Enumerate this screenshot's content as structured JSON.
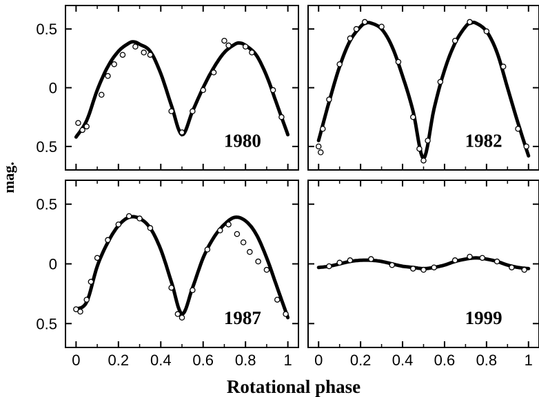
{
  "chart_data": [
    {
      "type": "line",
      "panel": "top-left",
      "label": "1980",
      "x": [
        0,
        0.05,
        0.1,
        0.15,
        0.2,
        0.25,
        0.275,
        0.3,
        0.35,
        0.4,
        0.45,
        0.5,
        0.55,
        0.6,
        0.65,
        0.7,
        0.75,
        0.775,
        0.8,
        0.85,
        0.9,
        0.95,
        1.0
      ],
      "series": [
        {
          "values": [
            -0.42,
            -0.28,
            -0.02,
            0.18,
            0.31,
            0.38,
            0.39,
            0.37,
            0.31,
            0.12,
            -0.15,
            -0.4,
            -0.2,
            0.0,
            0.17,
            0.3,
            0.37,
            0.38,
            0.36,
            0.28,
            0.1,
            -0.15,
            -0.4
          ]
        }
      ],
      "points": [
        [
          0.01,
          -0.3
        ],
        [
          0.03,
          -0.36
        ],
        [
          0.05,
          -0.33
        ],
        [
          0.12,
          -0.06
        ],
        [
          0.15,
          0.1
        ],
        [
          0.18,
          0.2
        ],
        [
          0.22,
          0.28
        ],
        [
          0.28,
          0.35
        ],
        [
          0.32,
          0.3
        ],
        [
          0.35,
          0.28
        ],
        [
          0.45,
          -0.2
        ],
        [
          0.5,
          -0.38
        ],
        [
          0.55,
          -0.2
        ],
        [
          0.6,
          -0.02
        ],
        [
          0.65,
          0.13
        ],
        [
          0.7,
          0.4
        ],
        [
          0.72,
          0.36
        ],
        [
          0.8,
          0.35
        ],
        [
          0.83,
          0.3
        ],
        [
          0.93,
          -0.02
        ],
        [
          0.97,
          -0.25
        ]
      ],
      "xlim": [
        -0.05,
        1.05
      ],
      "ylim": [
        0.7,
        -0.7
      ],
      "yticks": [
        "0.5",
        "0",
        "0.5"
      ],
      "xticks": [],
      "ytick_values": [
        -0.5,
        0,
        0.5
      ]
    },
    {
      "type": "line",
      "panel": "top-right",
      "label": "1982",
      "x": [
        0,
        0.05,
        0.1,
        0.15,
        0.2,
        0.225,
        0.25,
        0.3,
        0.35,
        0.4,
        0.45,
        0.5,
        0.55,
        0.6,
        0.65,
        0.7,
        0.725,
        0.75,
        0.8,
        0.85,
        0.9,
        0.95,
        1.0
      ],
      "series": [
        {
          "values": [
            -0.45,
            -0.12,
            0.18,
            0.4,
            0.52,
            0.55,
            0.55,
            0.5,
            0.35,
            0.1,
            -0.2,
            -0.6,
            -0.18,
            0.15,
            0.38,
            0.52,
            0.55,
            0.55,
            0.48,
            0.3,
            0.0,
            -0.3,
            -0.58
          ]
        }
      ],
      "points": [
        [
          0.0,
          -0.5
        ],
        [
          0.01,
          -0.55
        ],
        [
          0.02,
          -0.35
        ],
        [
          0.05,
          -0.1
        ],
        [
          0.1,
          0.2
        ],
        [
          0.15,
          0.42
        ],
        [
          0.18,
          0.5
        ],
        [
          0.22,
          0.56
        ],
        [
          0.3,
          0.52
        ],
        [
          0.38,
          0.22
        ],
        [
          0.45,
          -0.25
        ],
        [
          0.48,
          -0.52
        ],
        [
          0.5,
          -0.62
        ],
        [
          0.52,
          -0.45
        ],
        [
          0.58,
          0.05
        ],
        [
          0.65,
          0.4
        ],
        [
          0.72,
          0.56
        ],
        [
          0.8,
          0.48
        ],
        [
          0.88,
          0.18
        ],
        [
          0.95,
          -0.35
        ],
        [
          0.99,
          -0.5
        ]
      ],
      "xlim": [
        -0.05,
        1.05
      ],
      "ylim": [
        0.7,
        -0.7
      ],
      "yticks": [],
      "xticks": []
    },
    {
      "type": "line",
      "panel": "bottom-left",
      "label": "1987",
      "x": [
        0,
        0.05,
        0.1,
        0.15,
        0.2,
        0.25,
        0.3,
        0.35,
        0.4,
        0.45,
        0.5,
        0.55,
        0.6,
        0.65,
        0.7,
        0.75,
        0.8,
        0.85,
        0.9,
        0.95,
        1.0
      ],
      "series": [
        {
          "values": [
            -0.38,
            -0.32,
            -0.02,
            0.18,
            0.32,
            0.39,
            0.38,
            0.3,
            0.12,
            -0.15,
            -0.42,
            -0.2,
            0.05,
            0.22,
            0.33,
            0.39,
            0.36,
            0.25,
            0.05,
            -0.2,
            -0.45
          ]
        }
      ],
      "points": [
        [
          0.0,
          -0.38
        ],
        [
          0.02,
          -0.4
        ],
        [
          0.05,
          -0.3
        ],
        [
          0.07,
          -0.15
        ],
        [
          0.1,
          0.05
        ],
        [
          0.15,
          0.2
        ],
        [
          0.2,
          0.33
        ],
        [
          0.25,
          0.4
        ],
        [
          0.3,
          0.38
        ],
        [
          0.35,
          0.3
        ],
        [
          0.45,
          -0.2
        ],
        [
          0.48,
          -0.42
        ],
        [
          0.5,
          -0.45
        ],
        [
          0.55,
          -0.22
        ],
        [
          0.62,
          0.12
        ],
        [
          0.68,
          0.28
        ],
        [
          0.72,
          0.33
        ],
        [
          0.76,
          0.25
        ],
        [
          0.79,
          0.18
        ],
        [
          0.82,
          0.1
        ],
        [
          0.86,
          0.02
        ],
        [
          0.9,
          -0.05
        ],
        [
          0.95,
          -0.3
        ],
        [
          0.99,
          -0.42
        ]
      ],
      "xlim": [
        -0.05,
        1.05
      ],
      "ylim": [
        0.7,
        -0.7
      ],
      "yticks": [
        "0.5",
        "0",
        "0.5"
      ],
      "ytick_values": [
        -0.5,
        0,
        0.5
      ],
      "xticks": [
        "0",
        "0.2",
        "0.4",
        "0.6",
        "0.8",
        "1"
      ],
      "xtick_values": [
        0,
        0.2,
        0.4,
        0.6,
        0.8,
        1
      ]
    },
    {
      "type": "line",
      "panel": "bottom-right",
      "label": "1999",
      "x": [
        0,
        0.05,
        0.1,
        0.15,
        0.2,
        0.25,
        0.3,
        0.35,
        0.4,
        0.45,
        0.5,
        0.55,
        0.6,
        0.65,
        0.7,
        0.75,
        0.8,
        0.85,
        0.9,
        0.95,
        1.0
      ],
      "series": [
        {
          "values": [
            -0.03,
            -0.02,
            0.0,
            0.02,
            0.03,
            0.03,
            0.02,
            0.0,
            -0.02,
            -0.03,
            -0.04,
            -0.03,
            -0.01,
            0.02,
            0.04,
            0.05,
            0.04,
            0.02,
            -0.01,
            -0.03,
            -0.04
          ]
        }
      ],
      "points": [
        [
          0.05,
          -0.02
        ],
        [
          0.1,
          0.01
        ],
        [
          0.15,
          0.03
        ],
        [
          0.25,
          0.04
        ],
        [
          0.35,
          -0.01
        ],
        [
          0.45,
          -0.04
        ],
        [
          0.5,
          -0.05
        ],
        [
          0.55,
          -0.03
        ],
        [
          0.65,
          0.03
        ],
        [
          0.72,
          0.06
        ],
        [
          0.78,
          0.05
        ],
        [
          0.85,
          0.02
        ],
        [
          0.92,
          -0.03
        ],
        [
          0.98,
          -0.05
        ]
      ],
      "xlim": [
        -0.05,
        1.05
      ],
      "ylim": [
        0.7,
        -0.7
      ],
      "yticks": [],
      "xticks": [
        "0",
        "0.2",
        "0.4",
        "0.6",
        "0.8",
        "1"
      ],
      "xtick_values": [
        0,
        0.2,
        0.4,
        0.6,
        0.8,
        1
      ]
    }
  ],
  "ylabel": "mag.",
  "xlabel": "Rotational phase"
}
